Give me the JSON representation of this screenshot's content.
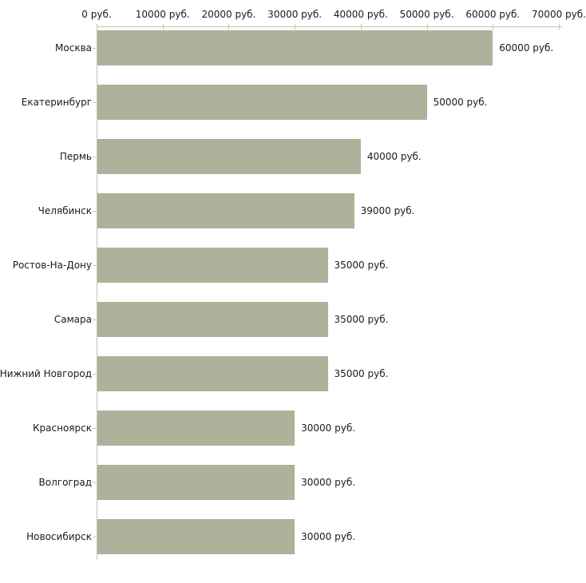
{
  "chart_data": {
    "type": "bar",
    "orientation": "horizontal",
    "title": "",
    "xlabel": "",
    "ylabel": "",
    "categories": [
      "Москва",
      "Екатеринбург",
      "Пермь",
      "Челябинск",
      "Ростов-На-Дону",
      "Самара",
      "Нижний Новгород",
      "Красноярск",
      "Волгоград",
      "Новосибирск"
    ],
    "values": [
      60000,
      50000,
      40000,
      39000,
      35000,
      35000,
      35000,
      30000,
      30000,
      30000
    ],
    "value_labels": [
      "60000 руб.",
      "50000 руб.",
      "40000 руб.",
      "39000 руб.",
      "35000 руб.",
      "35000 руб.",
      "35000 руб.",
      "30000 руб.",
      "30000 руб.",
      "30000 руб."
    ],
    "xlim": [
      0,
      70000
    ],
    "x_ticks": [
      0,
      10000,
      20000,
      30000,
      40000,
      50000,
      60000,
      70000
    ],
    "x_tick_labels": [
      "0 руб.",
      "10000 руб.",
      "20000 руб.",
      "30000 руб.",
      "40000 руб.",
      "50000 руб.",
      "60000 руб.",
      "70000 руб."
    ],
    "grid": false,
    "legend": false,
    "colors": {
      "bar_fill": "#adb29a",
      "axis_line": "#c0c0c0",
      "tick_mark": "#c9c6a5",
      "text": "#1a1a1a",
      "background": "#ffffff"
    }
  }
}
